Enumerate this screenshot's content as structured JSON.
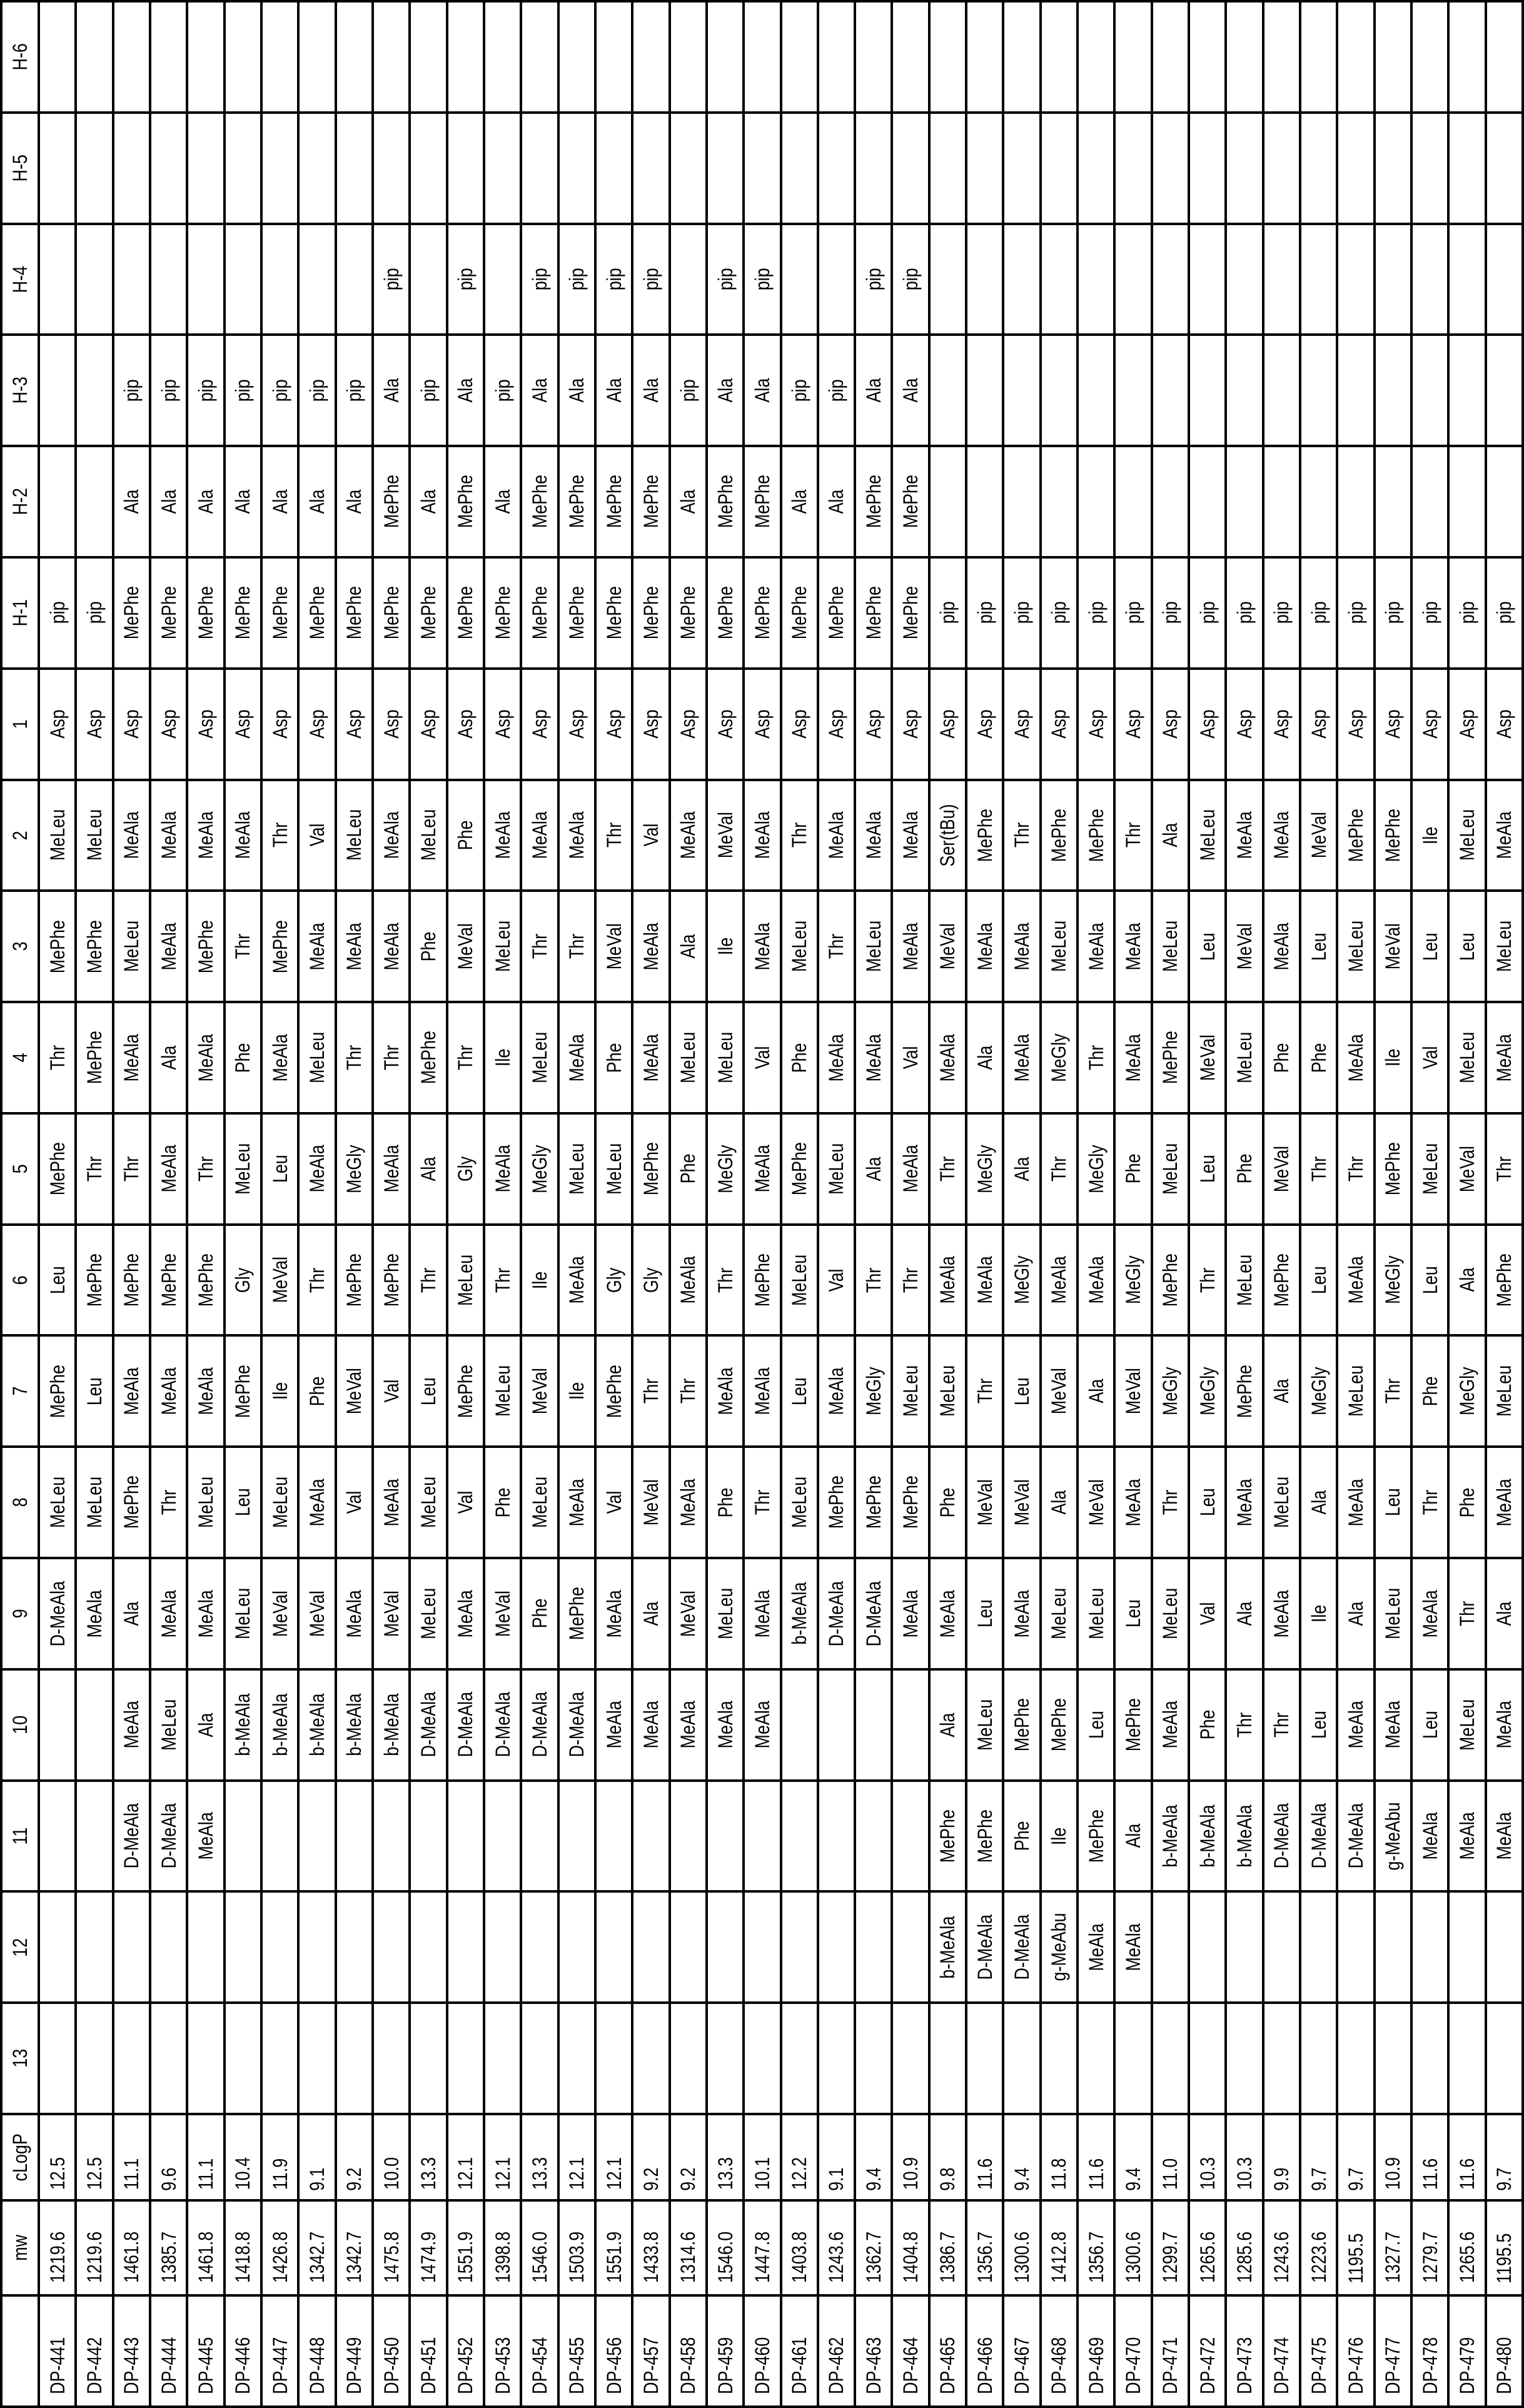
{
  "header": {
    "row_labels": [
      "H-6",
      "H-5",
      "H-4",
      "H-3",
      "H-2",
      "H-1",
      "1",
      "2",
      "3",
      "4",
      "5",
      "6",
      "7",
      "8",
      "9",
      "10",
      "11",
      "12",
      "13"
    ],
    "clogp_label": "cLogP",
    "mw_label": "mw",
    "id_label": ""
  },
  "compounds": [
    {
      "id": "DP-441",
      "mw": "1219.6",
      "clogp": "12.5",
      "h": [
        "",
        "",
        "",
        "",
        "",
        "pip"
      ],
      "p": [
        "Asp",
        "MeLeu",
        "MePhe",
        "Thr",
        "MePhe",
        "Leu",
        "MePhe",
        "MeLeu",
        "D-MeAla",
        "",
        "",
        "",
        ""
      ]
    },
    {
      "id": "DP-442",
      "mw": "1219.6",
      "clogp": "12.5",
      "h": [
        "",
        "",
        "",
        "",
        "",
        "pip"
      ],
      "p": [
        "Asp",
        "MeLeu",
        "MePhe",
        "MePhe",
        "Thr",
        "MePhe",
        "Leu",
        "MeLeu",
        "MeAla",
        "",
        "",
        "",
        ""
      ]
    },
    {
      "id": "DP-443",
      "mw": "1461.8",
      "clogp": "11.1",
      "h": [
        "",
        "",
        "",
        "pip",
        "Ala",
        "MePhe"
      ],
      "p": [
        "Asp",
        "MeAla",
        "MeLeu",
        "MeAla",
        "Thr",
        "MePhe",
        "MeAla",
        "MePhe",
        "Ala",
        "MeAla",
        "D-MeAla",
        "",
        ""
      ]
    },
    {
      "id": "DP-444",
      "mw": "1385.7",
      "clogp": "9.6",
      "h": [
        "",
        "",
        "",
        "pip",
        "Ala",
        "MePhe"
      ],
      "p": [
        "Asp",
        "MeAla",
        "MeAla",
        "Ala",
        "MeAla",
        "MePhe",
        "MeAla",
        "Thr",
        "MeAla",
        "MeLeu",
        "D-MeAla",
        "",
        ""
      ]
    },
    {
      "id": "DP-445",
      "mw": "1461.8",
      "clogp": "11.1",
      "h": [
        "",
        "",
        "",
        "pip",
        "Ala",
        "MePhe"
      ],
      "p": [
        "Asp",
        "MeAla",
        "MePhe",
        "MeAla",
        "Thr",
        "MePhe",
        "MeAla",
        "MeLeu",
        "MeAla",
        "Ala",
        "MeAla",
        "",
        ""
      ]
    },
    {
      "id": "DP-446",
      "mw": "1418.8",
      "clogp": "10.4",
      "h": [
        "",
        "",
        "",
        "pip",
        "Ala",
        "MePhe"
      ],
      "p": [
        "Asp",
        "MeAla",
        "Thr",
        "Phe",
        "MeLeu",
        "Gly",
        "MePhe",
        "Leu",
        "MeLeu",
        "b-MeAla",
        "",
        "",
        ""
      ]
    },
    {
      "id": "DP-447",
      "mw": "1426.8",
      "clogp": "11.9",
      "h": [
        "",
        "",
        "",
        "pip",
        "Ala",
        "MePhe"
      ],
      "p": [
        "Asp",
        "Thr",
        "MePhe",
        "MeAla",
        "Leu",
        "MeVal",
        "Ile",
        "MeLeu",
        "MeVal",
        "b-MeAla",
        "",
        "",
        ""
      ]
    },
    {
      "id": "DP-448",
      "mw": "1342.7",
      "clogp": "9.1",
      "h": [
        "",
        "",
        "",
        "pip",
        "Ala",
        "MePhe"
      ],
      "p": [
        "Asp",
        "Val",
        "MeAla",
        "MeLeu",
        "MeAla",
        "Thr",
        "Phe",
        "MeAla",
        "MeVal",
        "b-MeAla",
        "",
        "",
        ""
      ]
    },
    {
      "id": "DP-449",
      "mw": "1342.7",
      "clogp": "9.2",
      "h": [
        "",
        "",
        "",
        "pip",
        "Ala",
        "MePhe"
      ],
      "p": [
        "Asp",
        "MeLeu",
        "MeAla",
        "Thr",
        "MeGly",
        "MePhe",
        "MeVal",
        "Val",
        "MeAla",
        "b-MeAla",
        "",
        "",
        ""
      ]
    },
    {
      "id": "DP-450",
      "mw": "1475.8",
      "clogp": "10.0",
      "h": [
        "",
        "",
        "pip",
        "Ala",
        "MePhe",
        "MePhe"
      ],
      "p": [
        "Asp",
        "MeAla",
        "MeAla",
        "Thr",
        "MeAla",
        "MePhe",
        "Val",
        "MeAla",
        "MeVal",
        "b-MeAla",
        "",
        "",
        ""
      ]
    },
    {
      "id": "DP-451",
      "mw": "1474.9",
      "clogp": "13.3",
      "h": [
        "",
        "",
        "",
        "pip",
        "Ala",
        "MePhe"
      ],
      "p": [
        "Asp",
        "MeLeu",
        "Phe",
        "MePhe",
        "Ala",
        "Thr",
        "Leu",
        "MeLeu",
        "MeLeu",
        "D-MeAla",
        "",
        "",
        ""
      ]
    },
    {
      "id": "DP-452",
      "mw": "1551.9",
      "clogp": "12.1",
      "h": [
        "",
        "",
        "pip",
        "Ala",
        "MePhe",
        "MePhe"
      ],
      "p": [
        "Asp",
        "Phe",
        "MeVal",
        "Thr",
        "Gly",
        "MeLeu",
        "MePhe",
        "Val",
        "MeAla",
        "D-MeAla",
        "",
        "",
        ""
      ]
    },
    {
      "id": "DP-453",
      "mw": "1398.8",
      "clogp": "12.1",
      "h": [
        "",
        "",
        "",
        "pip",
        "Ala",
        "MePhe"
      ],
      "p": [
        "Asp",
        "MeAla",
        "MeLeu",
        "Ile",
        "MeAla",
        "Thr",
        "MeLeu",
        "Phe",
        "MeVal",
        "D-MeAla",
        "",
        "",
        ""
      ]
    },
    {
      "id": "DP-454",
      "mw": "1546.0",
      "clogp": "13.3",
      "h": [
        "",
        "",
        "pip",
        "Ala",
        "MePhe",
        "MePhe"
      ],
      "p": [
        "Asp",
        "MeAla",
        "Thr",
        "MeLeu",
        "MeGly",
        "Ile",
        "MeVal",
        "MeLeu",
        "Phe",
        "D-MeAla",
        "",
        "",
        ""
      ]
    },
    {
      "id": "DP-455",
      "mw": "1503.9",
      "clogp": "12.1",
      "h": [
        "",
        "",
        "pip",
        "Ala",
        "MePhe",
        "MePhe"
      ],
      "p": [
        "Asp",
        "MeAla",
        "Thr",
        "MeAla",
        "MeLeu",
        "MeAla",
        "Ile",
        "MeAla",
        "MePhe",
        "D-MeAla",
        "",
        "",
        ""
      ]
    },
    {
      "id": "DP-456",
      "mw": "1551.9",
      "clogp": "12.1",
      "h": [
        "",
        "",
        "pip",
        "Ala",
        "MePhe",
        "MePhe"
      ],
      "p": [
        "Asp",
        "Thr",
        "MeVal",
        "Phe",
        "MeLeu",
        "Gly",
        "MePhe",
        "Val",
        "MeAla",
        "MeAla",
        "",
        "",
        ""
      ]
    },
    {
      "id": "DP-457",
      "mw": "1433.8",
      "clogp": "9.2",
      "h": [
        "",
        "",
        "pip",
        "Ala",
        "MePhe",
        "MePhe"
      ],
      "p": [
        "Asp",
        "Val",
        "MeAla",
        "MeAla",
        "MePhe",
        "Gly",
        "Thr",
        "MeVal",
        "Ala",
        "MeAla",
        "",
        "",
        ""
      ]
    },
    {
      "id": "DP-458",
      "mw": "1314.6",
      "clogp": "9.2",
      "h": [
        "",
        "",
        "",
        "pip",
        "Ala",
        "MePhe"
      ],
      "p": [
        "Asp",
        "MeAla",
        "Ala",
        "MeLeu",
        "Phe",
        "MeAla",
        "Thr",
        "MeAla",
        "MeVal",
        "MeAla",
        "",
        "",
        ""
      ]
    },
    {
      "id": "DP-459",
      "mw": "1546.0",
      "clogp": "13.3",
      "h": [
        "",
        "",
        "pip",
        "Ala",
        "MePhe",
        "MePhe"
      ],
      "p": [
        "Asp",
        "MeVal",
        "Ile",
        "MeLeu",
        "MeGly",
        "Thr",
        "MeAla",
        "Phe",
        "MeLeu",
        "MeAla",
        "",
        "",
        ""
      ]
    },
    {
      "id": "DP-460",
      "mw": "1447.8",
      "clogp": "10.1",
      "h": [
        "",
        "",
        "pip",
        "Ala",
        "MePhe",
        "MePhe"
      ],
      "p": [
        "Asp",
        "MeAla",
        "MeAla",
        "Val",
        "MeAla",
        "MePhe",
        "MeAla",
        "Thr",
        "MeAla",
        "MeAla",
        "",
        "",
        ""
      ]
    },
    {
      "id": "DP-461",
      "mw": "1403.8",
      "clogp": "12.2",
      "h": [
        "",
        "",
        "",
        "pip",
        "Ala",
        "MePhe"
      ],
      "p": [
        "Asp",
        "Thr",
        "MeLeu",
        "Phe",
        "MePhe",
        "MeLeu",
        "Leu",
        "MeLeu",
        "b-MeAla",
        "",
        "",
        "",
        ""
      ]
    },
    {
      "id": "DP-462",
      "mw": "1243.6",
      "clogp": "9.1",
      "h": [
        "",
        "",
        "",
        "pip",
        "Ala",
        "MePhe"
      ],
      "p": [
        "Asp",
        "MeAla",
        "Thr",
        "MeAla",
        "MeLeu",
        "Val",
        "MeAla",
        "MePhe",
        "D-MeAla",
        "",
        "",
        "",
        ""
      ]
    },
    {
      "id": "DP-463",
      "mw": "1362.7",
      "clogp": "9.4",
      "h": [
        "",
        "",
        "pip",
        "Ala",
        "MePhe",
        "MePhe"
      ],
      "p": [
        "Asp",
        "MeAla",
        "MeLeu",
        "MeAla",
        "Ala",
        "Thr",
        "MeGly",
        "MePhe",
        "D-MeAla",
        "",
        "",
        "",
        ""
      ]
    },
    {
      "id": "DP-464",
      "mw": "1404.8",
      "clogp": "10.9",
      "h": [
        "",
        "",
        "pip",
        "Ala",
        "MePhe",
        "MePhe"
      ],
      "p": [
        "Asp",
        "MeAla",
        "MeAla",
        "Val",
        "MeAla",
        "Thr",
        "MeLeu",
        "MePhe",
        "MeAla",
        "",
        "",
        "",
        ""
      ]
    },
    {
      "id": "DP-465",
      "mw": "1386.7",
      "clogp": "9.8",
      "h": [
        "",
        "",
        "",
        "",
        "",
        "pip"
      ],
      "p": [
        "Asp",
        "Ser(tBu)",
        "MeVal",
        "MeAla",
        "Thr",
        "MeAla",
        "MeLeu",
        "Phe",
        "MeAla",
        "Ala",
        "MePhe",
        "b-MeAla",
        ""
      ]
    },
    {
      "id": "DP-466",
      "mw": "1356.7",
      "clogp": "11.6",
      "h": [
        "",
        "",
        "",
        "",
        "",
        "pip"
      ],
      "p": [
        "Asp",
        "MePhe",
        "MeAla",
        "Ala",
        "MeGly",
        "MeAla",
        "Thr",
        "MeVal",
        "Leu",
        "MeLeu",
        "MePhe",
        "D-MeAla",
        ""
      ]
    },
    {
      "id": "DP-467",
      "mw": "1300.6",
      "clogp": "9.4",
      "h": [
        "",
        "",
        "",
        "",
        "",
        "pip"
      ],
      "p": [
        "Asp",
        "Thr",
        "MeAla",
        "MeAla",
        "Ala",
        "MeGly",
        "Leu",
        "MeVal",
        "MeAla",
        "MePhe",
        "Phe",
        "D-MeAla",
        ""
      ]
    },
    {
      "id": "DP-468",
      "mw": "1412.8",
      "clogp": "11.8",
      "h": [
        "",
        "",
        "",
        "",
        "",
        "pip"
      ],
      "p": [
        "Asp",
        "MePhe",
        "MeLeu",
        "MeGly",
        "Thr",
        "MeAla",
        "MeVal",
        "Ala",
        "MeLeu",
        "MePhe",
        "Ile",
        "g-MeAbu",
        ""
      ]
    },
    {
      "id": "DP-469",
      "mw": "1356.7",
      "clogp": "11.6",
      "h": [
        "",
        "",
        "",
        "",
        "",
        "pip"
      ],
      "p": [
        "Asp",
        "MePhe",
        "MeAla",
        "Thr",
        "MeGly",
        "MeAla",
        "Ala",
        "MeVal",
        "MeLeu",
        "Leu",
        "MePhe",
        "MeAla",
        ""
      ]
    },
    {
      "id": "DP-470",
      "mw": "1300.6",
      "clogp": "9.4",
      "h": [
        "",
        "",
        "",
        "",
        "",
        "pip"
      ],
      "p": [
        "Asp",
        "Thr",
        "MeAla",
        "MeAla",
        "Phe",
        "MeGly",
        "MeVal",
        "MeAla",
        "Leu",
        "MePhe",
        "Ala",
        "MeAla",
        ""
      ]
    },
    {
      "id": "DP-471",
      "mw": "1299.7",
      "clogp": "11.0",
      "h": [
        "",
        "",
        "",
        "",
        "",
        "pip"
      ],
      "p": [
        "Asp",
        "Ala",
        "MeLeu",
        "MePhe",
        "MeLeu",
        "MePhe",
        "MeGly",
        "Thr",
        "MeLeu",
        "MeAla",
        "b-MeAla",
        "",
        ""
      ]
    },
    {
      "id": "DP-472",
      "mw": "1265.6",
      "clogp": "10.3",
      "h": [
        "",
        "",
        "",
        "",
        "",
        "pip"
      ],
      "p": [
        "Asp",
        "MeLeu",
        "Leu",
        "MeVal",
        "Leu",
        "Thr",
        "MeGly",
        "Leu",
        "Val",
        "Phe",
        "b-MeAla",
        "",
        ""
      ]
    },
    {
      "id": "DP-473",
      "mw": "1285.6",
      "clogp": "10.3",
      "h": [
        "",
        "",
        "",
        "",
        "",
        "pip"
      ],
      "p": [
        "Asp",
        "MeAla",
        "MeVal",
        "MeLeu",
        "Phe",
        "MeLeu",
        "MePhe",
        "MeAla",
        "Ala",
        "Thr",
        "b-MeAla",
        "",
        ""
      ]
    },
    {
      "id": "DP-474",
      "mw": "1243.6",
      "clogp": "9.9",
      "h": [
        "",
        "",
        "",
        "",
        "",
        "pip"
      ],
      "p": [
        "Asp",
        "MeAla",
        "MeAla",
        "Phe",
        "MeVal",
        "MePhe",
        "Ala",
        "MeLeu",
        "MeAla",
        "Thr",
        "D-MeAla",
        "",
        ""
      ]
    },
    {
      "id": "DP-475",
      "mw": "1223.6",
      "clogp": "9.7",
      "h": [
        "",
        "",
        "",
        "",
        "",
        "pip"
      ],
      "p": [
        "Asp",
        "MeVal",
        "Leu",
        "Phe",
        "Thr",
        "Leu",
        "MeGly",
        "Ala",
        "Ile",
        "Leu",
        "D-MeAla",
        "",
        ""
      ]
    },
    {
      "id": "DP-476",
      "mw": "1195.5",
      "clogp": "9.7",
      "h": [
        "",
        "",
        "",
        "",
        "",
        "pip"
      ],
      "p": [
        "Asp",
        "MePhe",
        "MeLeu",
        "MeAla",
        "Thr",
        "MeAla",
        "MeLeu",
        "MeAla",
        "Ala",
        "MeAla",
        "D-MeAla",
        "",
        ""
      ]
    },
    {
      "id": "DP-477",
      "mw": "1327.7",
      "clogp": "10.9",
      "h": [
        "",
        "",
        "",
        "",
        "",
        "pip"
      ],
      "p": [
        "Asp",
        "MePhe",
        "MeVal",
        "Ile",
        "MePhe",
        "MeGly",
        "Thr",
        "Leu",
        "MeLeu",
        "MeAla",
        "g-MeAbu",
        "",
        ""
      ]
    },
    {
      "id": "DP-478",
      "mw": "1279.7",
      "clogp": "11.6",
      "h": [
        "",
        "",
        "",
        "",
        "",
        "pip"
      ],
      "p": [
        "Asp",
        "Ile",
        "Leu",
        "Val",
        "MeLeu",
        "Leu",
        "Phe",
        "Thr",
        "MeAla",
        "Leu",
        "MeAla",
        "",
        ""
      ]
    },
    {
      "id": "DP-479",
      "mw": "1265.6",
      "clogp": "11.6",
      "h": [
        "",
        "",
        "",
        "",
        "",
        "pip"
      ],
      "p": [
        "Asp",
        "MeLeu",
        "Leu",
        "MeLeu",
        "MeVal",
        "Ala",
        "MeGly",
        "Phe",
        "Thr",
        "MeLeu",
        "MeAla",
        "",
        ""
      ]
    },
    {
      "id": "DP-480",
      "mw": "1195.5",
      "clogp": "9.7",
      "h": [
        "",
        "",
        "",
        "",
        "",
        "pip"
      ],
      "p": [
        "Asp",
        "MeAla",
        "MeLeu",
        "MeAla",
        "Thr",
        "MePhe",
        "MeLeu",
        "MeAla",
        "Ala",
        "MeAla",
        "MeAla",
        "",
        ""
      ]
    }
  ]
}
